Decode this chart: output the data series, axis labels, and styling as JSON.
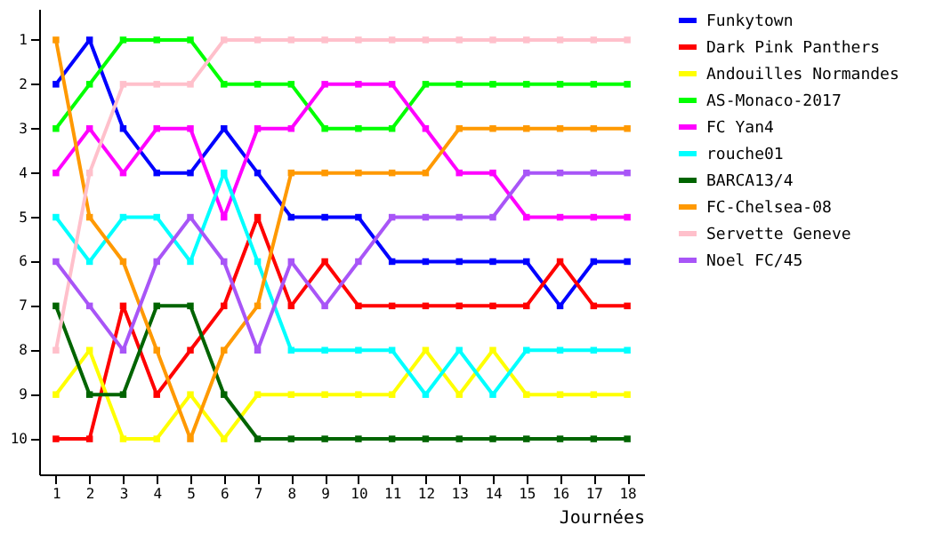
{
  "chart_data": {
    "type": "line",
    "xlabel": "Journées",
    "x": [
      1,
      2,
      3,
      4,
      5,
      6,
      7,
      8,
      9,
      10,
      11,
      12,
      13,
      14,
      15,
      16,
      17,
      18
    ],
    "series": [
      {
        "name": "Funkytown",
        "color": "#0000ff",
        "values": [
          2,
          1,
          3,
          4,
          4,
          3,
          4,
          5,
          5,
          5,
          6,
          6,
          6,
          6,
          6,
          7,
          6,
          6
        ]
      },
      {
        "name": "Dark Pink Panthers",
        "color": "#ff0000",
        "values": [
          10,
          10,
          7,
          9,
          8,
          7,
          5,
          7,
          6,
          7,
          7,
          7,
          7,
          7,
          7,
          6,
          7,
          7
        ]
      },
      {
        "name": "Andouilles Normandes",
        "color": "#ffff00",
        "values": [
          9,
          8,
          10,
          10,
          9,
          10,
          9,
          9,
          9,
          9,
          9,
          8,
          9,
          8,
          9,
          9,
          9,
          9
        ]
      },
      {
        "name": "AS-Monaco-2017",
        "color": "#00ff00",
        "values": [
          3,
          2,
          1,
          1,
          1,
          2,
          2,
          2,
          3,
          3,
          3,
          2,
          2,
          2,
          2,
          2,
          2,
          2
        ]
      },
      {
        "name": "FC Yan4",
        "color": "#ff00ff",
        "values": [
          4,
          3,
          4,
          3,
          3,
          5,
          3,
          3,
          2,
          2,
          2,
          3,
          4,
          4,
          5,
          5,
          5,
          5
        ]
      },
      {
        "name": "rouche01",
        "color": "#00ffff",
        "values": [
          5,
          6,
          5,
          5,
          6,
          4,
          6,
          8,
          8,
          8,
          8,
          9,
          8,
          9,
          8,
          8,
          8,
          8
        ]
      },
      {
        "name": "BARCA13/4",
        "color": "#006400",
        "values": [
          7,
          9,
          9,
          7,
          7,
          9,
          10,
          10,
          10,
          10,
          10,
          10,
          10,
          10,
          10,
          10,
          10,
          10
        ]
      },
      {
        "name": "FC-Chelsea-08",
        "color": "#ff9900",
        "values": [
          1,
          5,
          6,
          8,
          10,
          8,
          7,
          4,
          4,
          4,
          4,
          4,
          3,
          3,
          3,
          3,
          3,
          3
        ]
      },
      {
        "name": "Servette Geneve",
        "color": "#ffc0cb",
        "values": [
          8,
          4,
          2,
          2,
          2,
          1,
          1,
          1,
          1,
          1,
          1,
          1,
          1,
          1,
          1,
          1,
          1,
          1
        ]
      },
      {
        "name": "Noel FC/45",
        "color": "#a855f7",
        "values": [
          6,
          7,
          8,
          6,
          5,
          6,
          8,
          6,
          7,
          6,
          5,
          5,
          5,
          5,
          4,
          4,
          4,
          4
        ]
      }
    ],
    "xlim": [
      0.5,
      18.5
    ],
    "ylim": [
      10.8,
      0.3
    ],
    "xticks": [
      1,
      2,
      3,
      4,
      5,
      6,
      7,
      8,
      9,
      10,
      11,
      12,
      13,
      14,
      15,
      16,
      17,
      18
    ],
    "yticks": [
      1,
      2,
      3,
      4,
      5,
      6,
      7,
      8,
      9,
      10
    ],
    "grid": false,
    "legend": "right",
    "marker": "square",
    "line_style": "solid"
  }
}
